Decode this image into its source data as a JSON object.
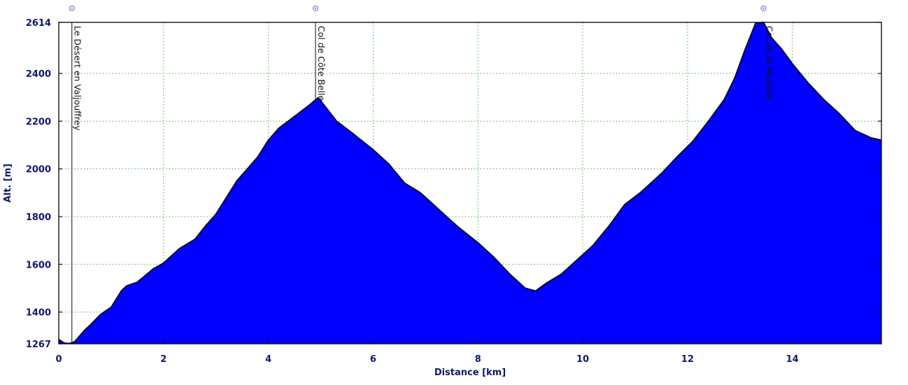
{
  "chart_data": {
    "type": "area",
    "xlabel": "Distance [km]",
    "ylabel": "Alt. [m]",
    "xlim": [
      0,
      15.7
    ],
    "ylim": [
      1267,
      2614
    ],
    "xticks": [
      0,
      2,
      4,
      6,
      8,
      10,
      12,
      14
    ],
    "yticks": [
      1267,
      1400,
      1600,
      1800,
      2000,
      2200,
      2400,
      2614
    ],
    "grid": true,
    "colors": {
      "fill": "#0000ff",
      "outline": "#0a0a40",
      "grid": "#33bb33",
      "text": "#0d1a66",
      "marker": "#7a8ccc"
    },
    "series": [
      {
        "x": [
          0,
          0.1,
          0.2,
          0.3,
          0.4,
          0.5,
          0.6,
          0.8,
          1.0,
          1.2,
          1.3,
          1.5,
          1.8,
          2.0,
          2.3,
          2.6,
          2.8,
          3.0,
          3.2,
          3.4,
          3.6,
          3.8,
          4.0,
          4.2,
          4.5,
          4.8,
          4.95,
          5.0,
          5.3,
          5.6,
          6.0,
          6.3,
          6.6,
          6.9,
          7.2,
          7.4,
          7.6,
          8.0,
          8.3,
          8.6,
          8.9,
          9.1,
          9.3,
          9.6,
          9.9,
          10.2,
          10.5,
          10.8,
          11.1,
          11.5,
          11.8,
          12.1,
          12.4,
          12.7,
          12.9,
          13.1,
          13.3,
          13.45,
          13.6,
          13.8,
          14.0,
          14.3,
          14.6,
          14.9,
          15.2,
          15.5,
          15.7
        ],
        "y": [
          1285,
          1270,
          1268,
          1275,
          1300,
          1325,
          1345,
          1390,
          1420,
          1490,
          1510,
          1525,
          1580,
          1605,
          1665,
          1705,
          1760,
          1810,
          1880,
          1950,
          2000,
          2050,
          2120,
          2170,
          2220,
          2270,
          2298,
          2285,
          2200,
          2150,
          2080,
          2020,
          1940,
          1900,
          1840,
          1800,
          1760,
          1690,
          1630,
          1560,
          1500,
          1488,
          1520,
          1560,
          1620,
          1680,
          1760,
          1850,
          1900,
          1980,
          2050,
          2115,
          2200,
          2290,
          2380,
          2500,
          2610,
          2614,
          2550,
          2500,
          2440,
          2360,
          2290,
          2230,
          2160,
          2130,
          2120
        ]
      }
    ],
    "poi": [
      {
        "x": 0.25,
        "label": "Le Désert en Valjouffrey"
      },
      {
        "x": 4.9,
        "label": "Col de Côte Belle"
      },
      {
        "x": 13.45,
        "label": "Col de la Muzelle"
      }
    ]
  }
}
